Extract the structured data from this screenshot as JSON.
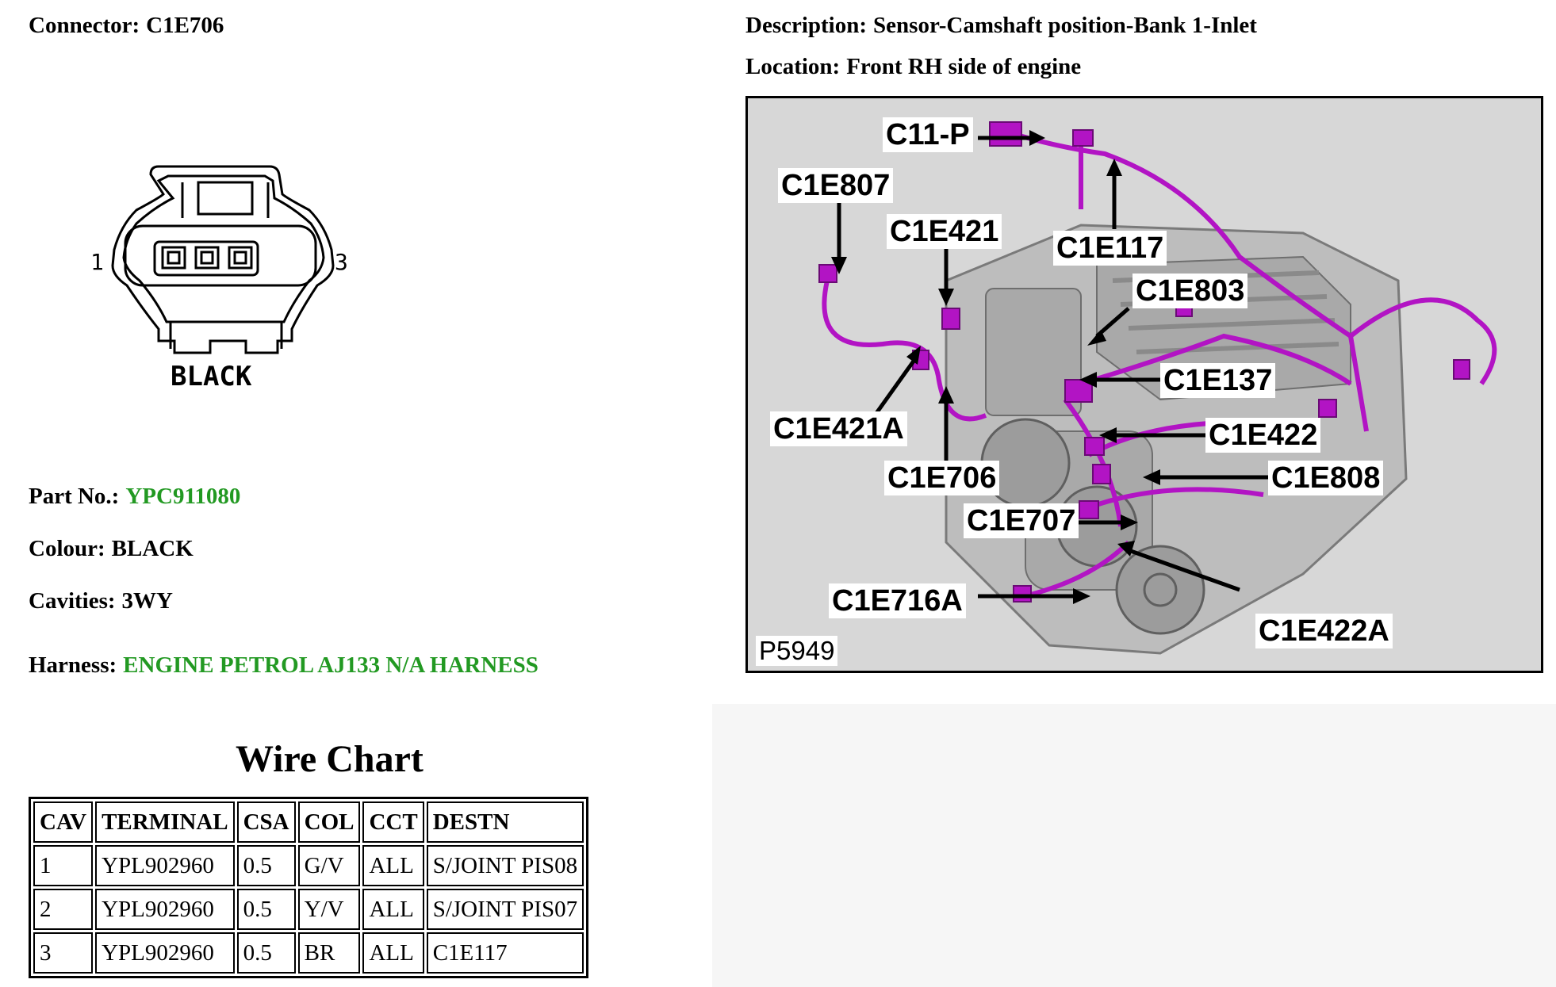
{
  "connector": {
    "label": "Connector:",
    "value": "C1E706"
  },
  "description": {
    "label": "Description:",
    "value": "Sensor-Camshaft position-Bank 1-Inlet"
  },
  "location": {
    "label": "Location:",
    "value": "Front RH side of engine"
  },
  "drawing": {
    "pin_left": "1",
    "pin_right": "3",
    "colour_text": "BLACK"
  },
  "part_no": {
    "label": "Part No.:",
    "value": "YPC911080"
  },
  "colour": {
    "label": "Colour:",
    "value": "BLACK"
  },
  "cavities": {
    "label": "Cavities:",
    "value": "3WY"
  },
  "harness": {
    "label": "Harness:",
    "value": "ENGINE PETROL AJ133 N/A HARNESS"
  },
  "wire_chart": {
    "title": "Wire Chart",
    "headers": [
      "CAV",
      "TERMINAL",
      "CSA",
      "COL",
      "CCT",
      "DESTN"
    ],
    "rows": [
      [
        "1",
        "YPL902960",
        "0.5",
        "G/V",
        "ALL",
        "S/JOINT PIS08"
      ],
      [
        "2",
        "YPL902960",
        "0.5",
        "Y/V",
        "ALL",
        "S/JOINT PIS07"
      ],
      [
        "3",
        "YPL902960",
        "0.5",
        "BR",
        "ALL",
        "C1E117"
      ]
    ]
  },
  "figure": {
    "id": "P5949",
    "callouts": {
      "c11p": "C11-P",
      "c1e807": "C1E807",
      "c1e421": "C1E421",
      "c1e117": "C1E117",
      "c1e803": "C1E803",
      "c1e137": "C1E137",
      "c1e421a": "C1E421A",
      "c1e422": "C1E422",
      "c1e706": "C1E706",
      "c1e808": "C1E808",
      "c1e707": "C1E707",
      "c1e716a": "C1E716A",
      "c1e422a": "C1E422A"
    }
  },
  "colors": {
    "link_green": "#229922",
    "harness_purple": "#b214c4",
    "figure_bg": "#d7d7d7"
  }
}
